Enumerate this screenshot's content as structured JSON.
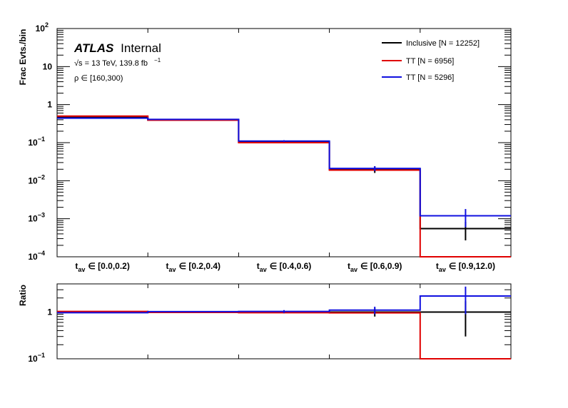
{
  "chart_data": [
    {
      "type": "step-histogram",
      "ylabel": "Frac Evts./bin",
      "yscale": "log",
      "ylim": [
        0.0001,
        100
      ],
      "y_ticks": [
        {
          "value": 100,
          "mant": "10",
          "exp": "2"
        },
        {
          "value": 10,
          "mant": "10",
          "exp": ""
        },
        {
          "value": 1,
          "mant": "1",
          "exp": ""
        },
        {
          "value": 0.1,
          "mant": "10",
          "exp": "−1"
        },
        {
          "value": 0.01,
          "mant": "10",
          "exp": "−2"
        },
        {
          "value": 0.001,
          "mant": "10",
          "exp": "−3"
        },
        {
          "value": 0.0001,
          "mant": "10",
          "exp": "−4"
        }
      ],
      "categories": [
        {
          "sym": "t",
          "sub": "av",
          "range": "∈ [0.0,0.2)"
        },
        {
          "sym": "t",
          "sub": "av",
          "range": "∈ [0.2,0.4)"
        },
        {
          "sym": "t",
          "sub": "av",
          "range": "∈ [0.4,0.6)"
        },
        {
          "sym": "t",
          "sub": "av",
          "range": "∈ [0.6,0.9)"
        },
        {
          "sym": "t",
          "sub": "av",
          "range": "∈ [0.9,12.0)"
        }
      ],
      "annotations": {
        "atlas": "ATLAS",
        "status": "Internal",
        "energy_line": "√s = 13 TeV, 139.8 fb",
        "energy_exp": "−1",
        "selection": "ρ ∈ [160,300)"
      },
      "legend_placement": "top-right",
      "series": [
        {
          "name": "Inclusive [N = 12252]",
          "color": "#000000",
          "values": [
            0.46,
            0.4,
            0.105,
            0.02,
            0.00055
          ],
          "errors": [
            0.01,
            0.01,
            0.006,
            0.004,
            0.00028
          ]
        },
        {
          "name": "TT [N = 6956]",
          "color": "#e00000",
          "values": [
            0.5,
            0.39,
            0.1,
            0.019,
            0.0001
          ],
          "errors": [
            0,
            0,
            0,
            0,
            0
          ]
        },
        {
          "name": "TT [N = 5296]",
          "color": "#1010e0",
          "values": [
            0.44,
            0.41,
            0.11,
            0.021,
            0.0012
          ],
          "errors": [
            0.01,
            0.01,
            0.006,
            0.003,
            0.0006
          ]
        }
      ]
    },
    {
      "type": "step-histogram",
      "ylabel": "Ratio",
      "yscale": "log",
      "ylim": [
        0.1,
        4
      ],
      "y_ticks": [
        {
          "value": 1,
          "mant": "1",
          "exp": ""
        },
        {
          "value": 0.1,
          "mant": "10",
          "exp": "−1"
        }
      ],
      "series": [
        {
          "name": "Inclusive [N = 12252]",
          "color": "#000000",
          "values": [
            1,
            1,
            1,
            1,
            1
          ],
          "errors": [
            0.02,
            0.03,
            0.06,
            0.2,
            0.7
          ]
        },
        {
          "name": "TT [N = 6956]",
          "color": "#e00000",
          "values": [
            1.03,
            0.98,
            0.97,
            0.96,
            0.1
          ],
          "errors": [
            0,
            0,
            0,
            0,
            0
          ]
        },
        {
          "name": "TT [N = 5296]",
          "color": "#1010e0",
          "values": [
            0.97,
            1.02,
            1.03,
            1.1,
            2.2
          ],
          "errors": [
            0.02,
            0.03,
            0.07,
            0.2,
            1.3
          ]
        }
      ]
    }
  ]
}
